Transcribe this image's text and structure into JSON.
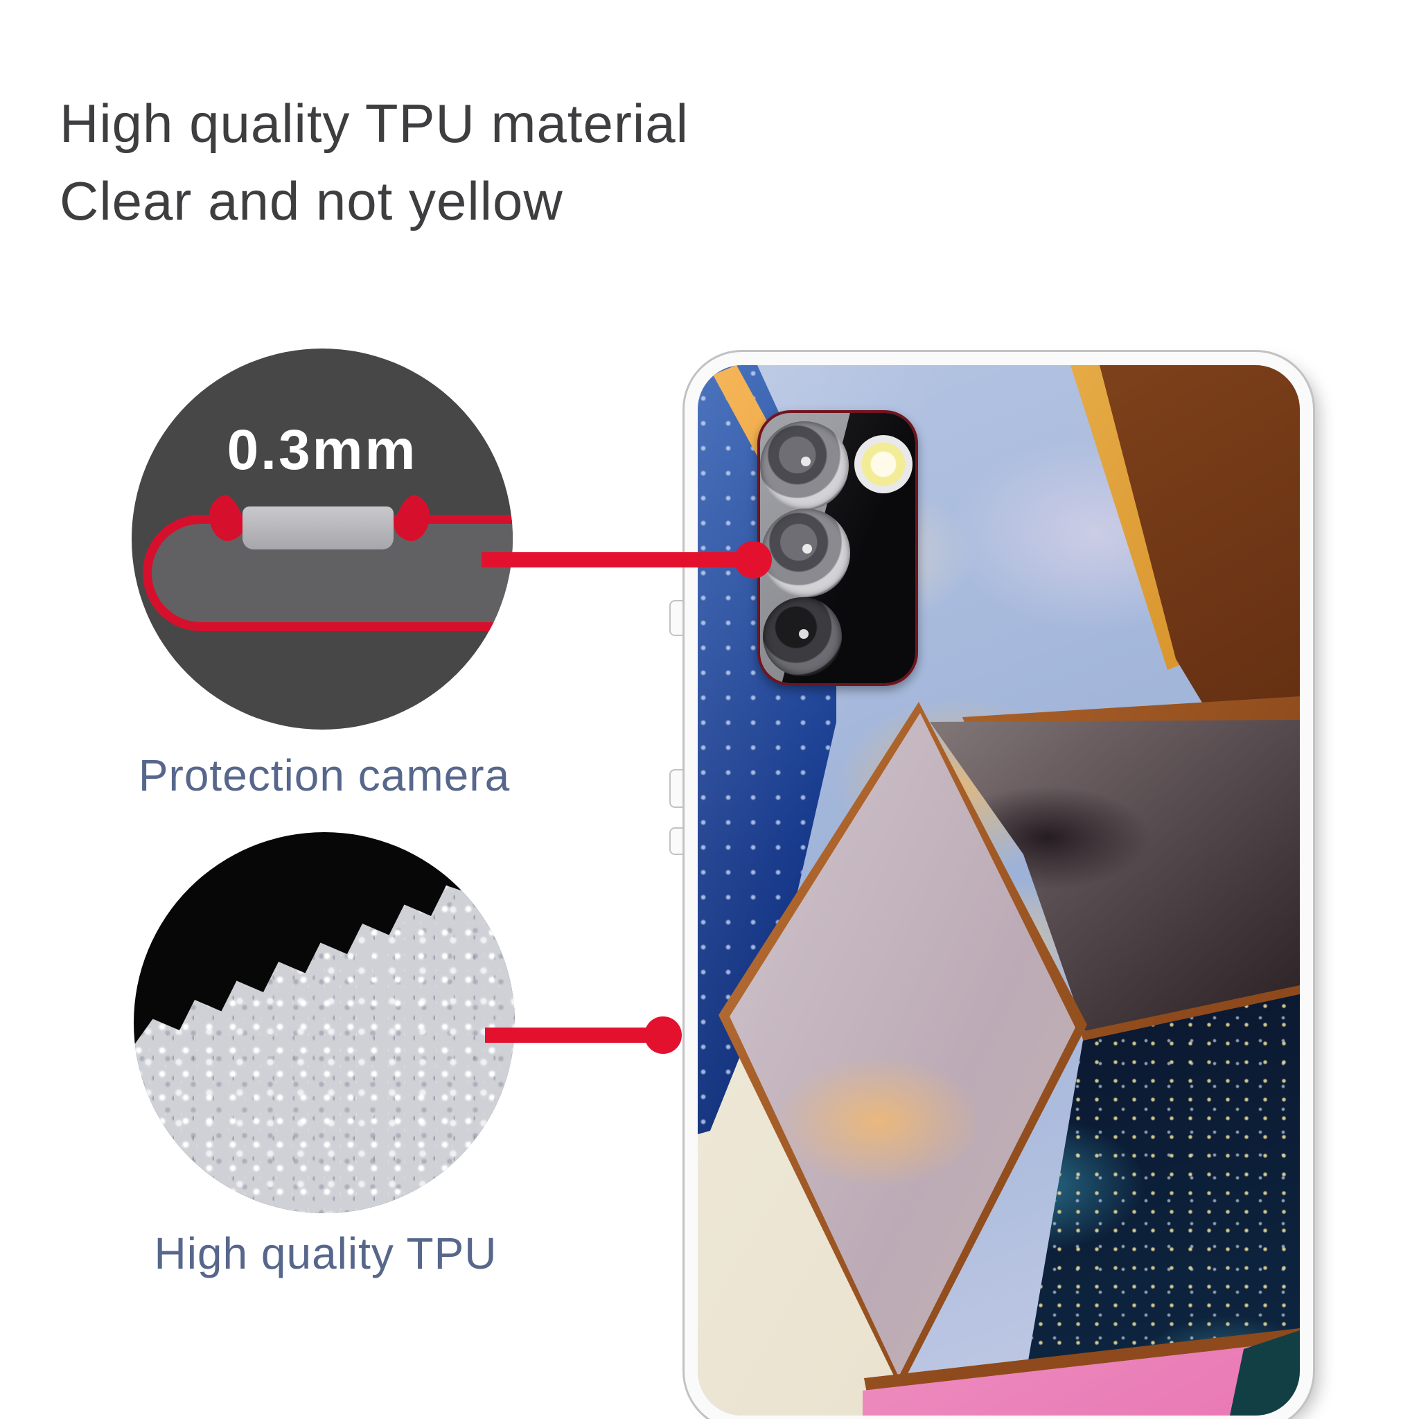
{
  "header": {
    "line1": "High quality TPU material",
    "line2": "Clear and not yellow"
  },
  "callouts": {
    "thickness": {
      "badge": "0.3mm",
      "label": "Protection camera"
    },
    "material": {
      "label": "High quality TPU"
    }
  },
  "icons": {
    "camera_lens": "concentric-circle",
    "camera_flash": "glow-circle",
    "connector_dot": "filled-circle"
  },
  "palette": {
    "accent_red": "#e3112e",
    "heading_text": "#3e3e40",
    "callout_label_text": "#57678c",
    "thickness_circle_fill": "#474747",
    "cross_section_fill": "#616164",
    "cross_section_button": "#b5b5b9",
    "granule_circle_fill": "#070707",
    "granule_fill": "#cfd1d6",
    "case_band": "#fafafa",
    "case_outline": "#c2c2c5",
    "camera_module_rim": "#70141f",
    "gold_band": "#d9952e",
    "copper_band": "#8e4a1c",
    "marble_deep_blue": "#16388a",
    "marble_periwinkle": "#a5b7da",
    "marble_amber_brown": "#5d2a10",
    "marble_pale_mauve": "#c4b3bd",
    "marble_galaxy_navy": "#0b1830",
    "marble_ivory": "#f0ead9",
    "marble_pink": "#ef9cc6",
    "marble_teal": "#123f44"
  }
}
